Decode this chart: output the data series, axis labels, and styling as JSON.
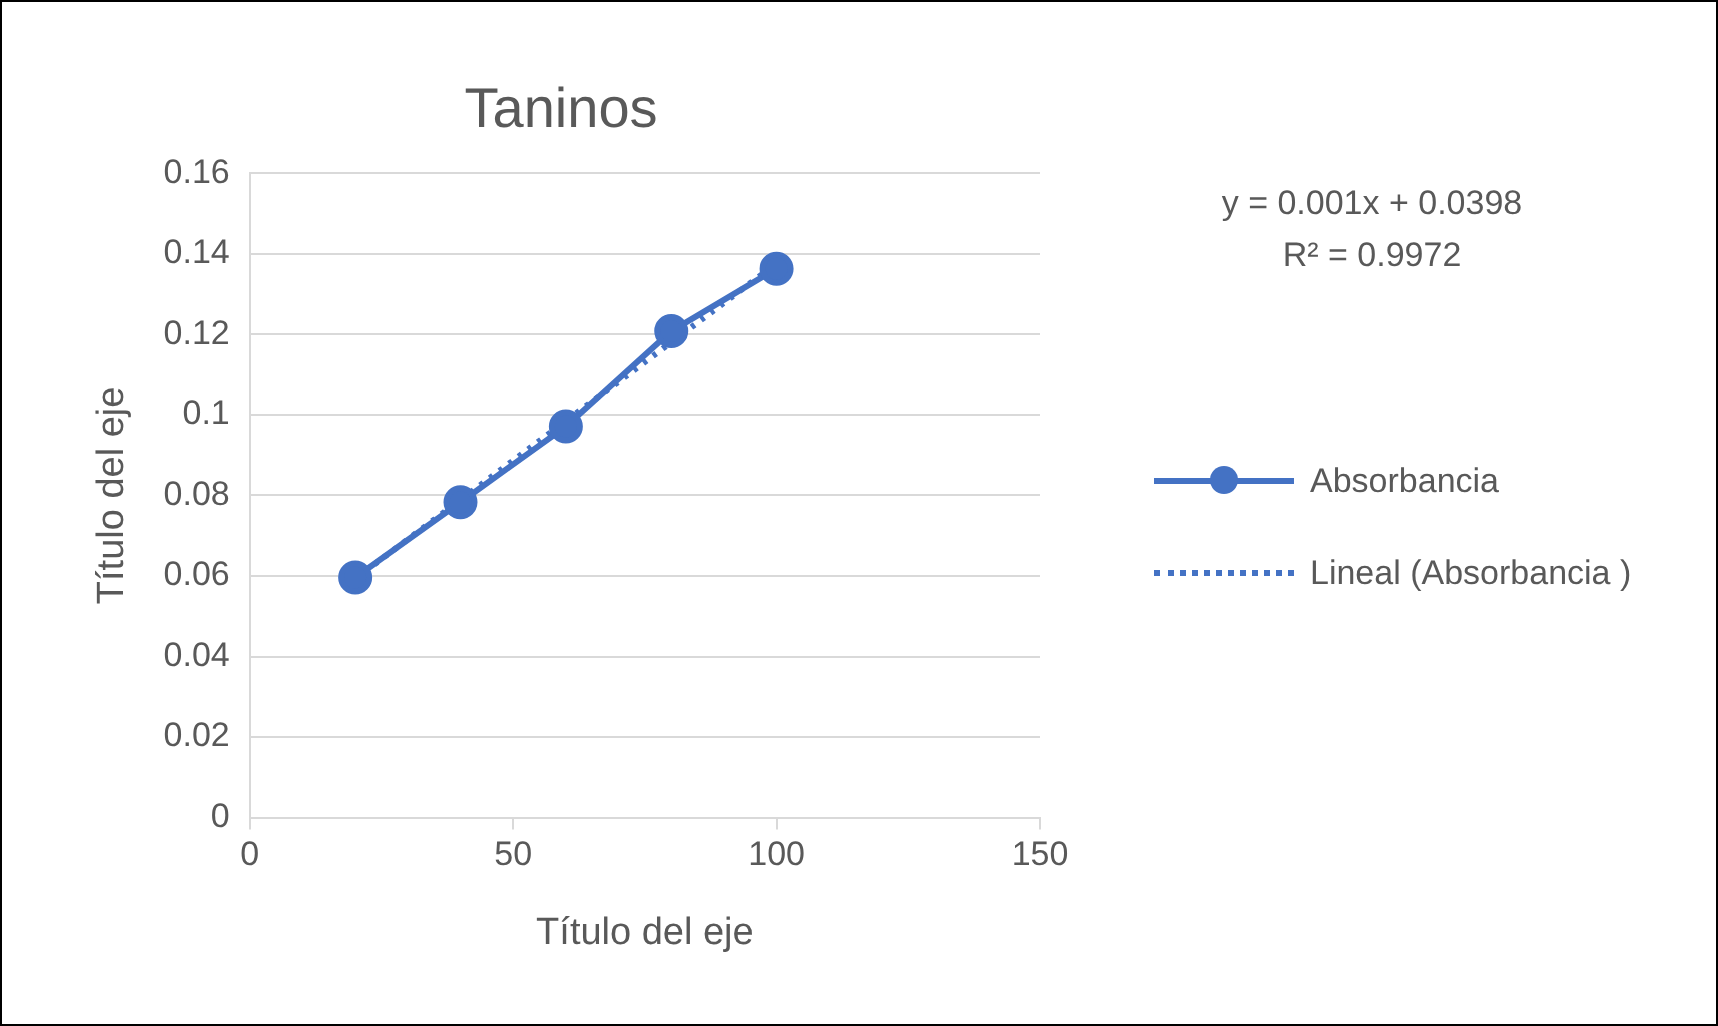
{
  "chart_data": {
    "type": "line",
    "title": "Taninos",
    "xlabel": "Título del eje",
    "ylabel": "Título del eje",
    "x": [
      20,
      40,
      60,
      80,
      100
    ],
    "series": [
      {
        "name": "Absorbancia",
        "color": "#4472c4",
        "values": [
          0.0596,
          0.0783,
          0.0971,
          0.1208,
          0.1363
        ],
        "marker": "circle",
        "line_style": "solid"
      },
      {
        "name": "Lineal (Absorbancia )",
        "color": "#4472c4",
        "type": "line",
        "x": [
          20,
          100
        ],
        "values": [
          0.0593,
          0.1376
        ],
        "marker": "none",
        "line_style": "dotted"
      }
    ],
    "xlim": [
      0,
      150
    ],
    "xticks": [
      0,
      50,
      100,
      150
    ],
    "ylim": [
      0,
      0.16
    ],
    "yticks": [
      0,
      0.02,
      0.04,
      0.06,
      0.08,
      0.1,
      0.12,
      0.14,
      0.16
    ],
    "grid": "y",
    "legend": "right",
    "annotations": [
      "y = 0.001x + 0.0398",
      "R² = 0.9972"
    ]
  }
}
